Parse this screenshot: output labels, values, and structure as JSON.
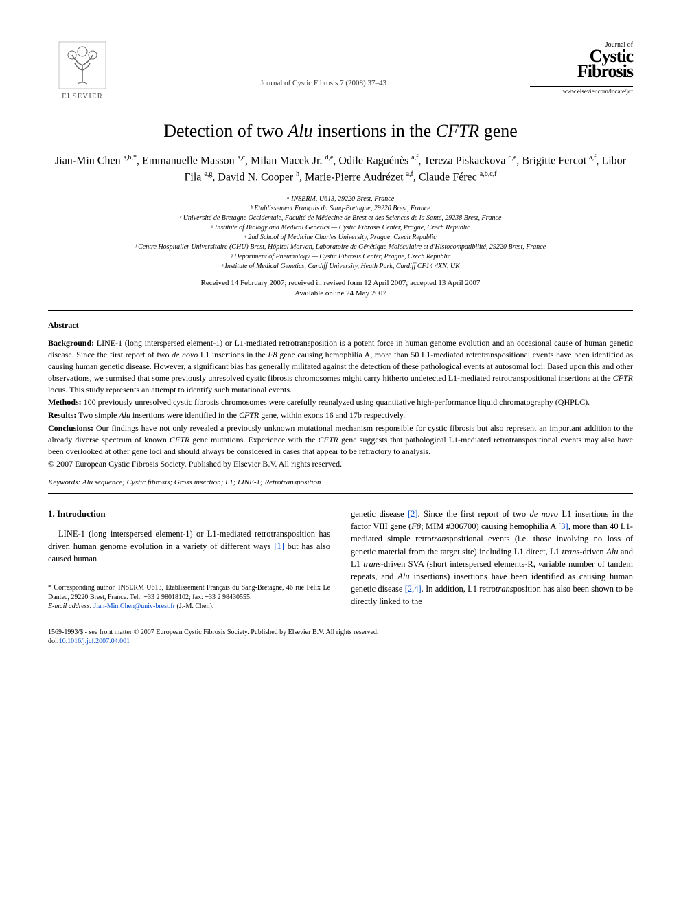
{
  "header": {
    "publisher_name": "ELSEVIER",
    "journal_citation": "Journal of Cystic Fibrosis 7 (2008) 37–43",
    "journal_brand_small": "Journal of",
    "journal_brand_word1": "Cystic",
    "journal_brand_word2": "Fibrosis",
    "journal_site": "www.elsevier.com/locate/jcf"
  },
  "title": {
    "pre": "Detection of two ",
    "ital1": "Alu",
    "mid": " insertions in the ",
    "ital2": "CFTR",
    "post": " gene"
  },
  "authors_html": "Jian-Min Chen <sup>a,b,*</sup>, Emmanuelle Masson <sup>a,c</sup>, Milan Macek Jr. <sup>d,e</sup>, Odile Raguénès <sup>a,f</sup>, Tereza Piskackova <sup>d,e</sup>, Brigitte Fercot <sup>a,f</sup>, Libor Fila <sup>e,g</sup>, David N. Cooper <sup>h</sup>, Marie-Pierre Audrézet <sup>a,f</sup>, Claude Férec <sup>a,b,c,f</sup>",
  "affiliations": [
    "ᵃ INSERM, U613, 29220 Brest, France",
    "ᵇ Etablissement Français du Sang-Bretagne, 29220 Brest, France",
    "ᶜ Université de Bretagne Occidentale, Faculté de Médecine de Brest et des Sciences de la Santé, 29238 Brest, France",
    "ᵈ Institute of Biology and Medical Genetics — Cystic Fibrosis Center, Prague, Czech Republic",
    "ᵉ 2nd School of Medicine Charles University, Prague, Czech Republic",
    "ᶠ Centre Hospitalier Universitaire (CHU) Brest, Hôpital Morvan, Laboratoire de Génétique Moléculaire et d'Histocompatibilité, 29220 Brest, France",
    "ᵍ Department of Pneumology — Cystic Fibrosis Center, Prague, Czech Republic",
    "ʰ Institute of Medical Genetics, Cardiff University, Heath Park, Cardiff CF14 4XN, UK"
  ],
  "dates": {
    "line1": "Received 14 February 2007; received in revised form 12 April 2007; accepted 13 April 2007",
    "line2": "Available online 24 May 2007"
  },
  "abstract": {
    "heading": "Abstract",
    "background_label": "Background:",
    "background_text": " LINE-1 (long interspersed element-1) or L1-mediated retrotransposition is a potent force in human genome evolution and an occasional cause of human genetic disease. Since the first report of two de novo L1 insertions in the F8 gene causing hemophilia A, more than 50 L1-mediated retrotranspositional events have been identified as causing human genetic disease. However, a significant bias has generally militated against the detection of these pathological events at autosomal loci. Based upon this and other observations, we surmised that some previously unresolved cystic fibrosis chromosomes might carry hitherto undetected L1-mediated retrotranspositional insertions at the CFTR locus. This study represents an attempt to identify such mutational events.",
    "methods_label": "Methods:",
    "methods_text": " 100 previously unresolved cystic fibrosis chromosomes were carefully reanalyzed using quantitative high-performance liquid chromatography (QHPLC).",
    "results_label": "Results:",
    "results_text": " Two simple Alu insertions were identified in the CFTR gene, within exons 16 and 17b respectively.",
    "conclusions_label": "Conclusions:",
    "conclusions_text": " Our findings have not only revealed a previously unknown mutational mechanism responsible for cystic fibrosis but also represent an important addition to the already diverse spectrum of known CFTR gene mutations. Experience with the CFTR gene suggests that pathological L1-mediated retrotranspositional events may also have been overlooked at other gene loci and should always be considered in cases that appear to be refractory to analysis.",
    "copyright": "© 2007 European Cystic Fibrosis Society. Published by Elsevier B.V. All rights reserved."
  },
  "keywords": {
    "label": "Keywords:",
    "text": " Alu sequence; Cystic fibrosis; Gross insertion; L1; LINE-1; Retrotransposition"
  },
  "intro": {
    "heading": "1. Introduction",
    "left_text": "LINE-1 (long interspersed element-1) or L1-mediated retrotransposition has driven human genome evolution in a variety of different ways [1] but has also caused human",
    "right_text": "genetic disease [2]. Since the first report of two de novo L1 insertions in the factor VIII gene (F8; MIM #306700) causing hemophilia A [3], more than 40 L1-mediated simple retrotranspositional events (i.e. those involving no loss of genetic material from the target site) including L1 direct, L1 trans-driven Alu and L1 trans-driven SVA (short interspersed elements-R, variable number of tandem repeats, and Alu insertions) insertions have been identified as causing human genetic disease [2,4]. In addition, L1 retrotransposition has also been shown to be directly linked to the"
  },
  "footnotes": {
    "corr": "* Corresponding author. INSERM U613, Etablissement Français du Sang-Bretagne, 46 rue Félix Le Dantec, 29220 Brest, France. Tel.: +33 2 98018102; fax: +33 2 98430555.",
    "email_label": "E-mail address:",
    "email": "Jian-Min.Chen@univ-brest.fr",
    "email_post": " (J.-M. Chen)."
  },
  "bottom": {
    "line": "1569-1993/$ - see front matter © 2007 European Cystic Fibrosis Society. Published by Elsevier B.V. All rights reserved.",
    "doi_label": "doi:",
    "doi": "10.1016/j.jcf.2007.04.001"
  },
  "colors": {
    "text": "#000000",
    "link": "#0048c6",
    "background": "#ffffff",
    "rule": "#000000",
    "publisher_gray": "#555555"
  },
  "typography": {
    "body_family": "Times New Roman",
    "title_size_pt": 20,
    "author_size_pt": 12,
    "affil_size_pt": 8,
    "abstract_size_pt": 9,
    "body_size_pt": 10,
    "footnote_size_pt": 8
  }
}
